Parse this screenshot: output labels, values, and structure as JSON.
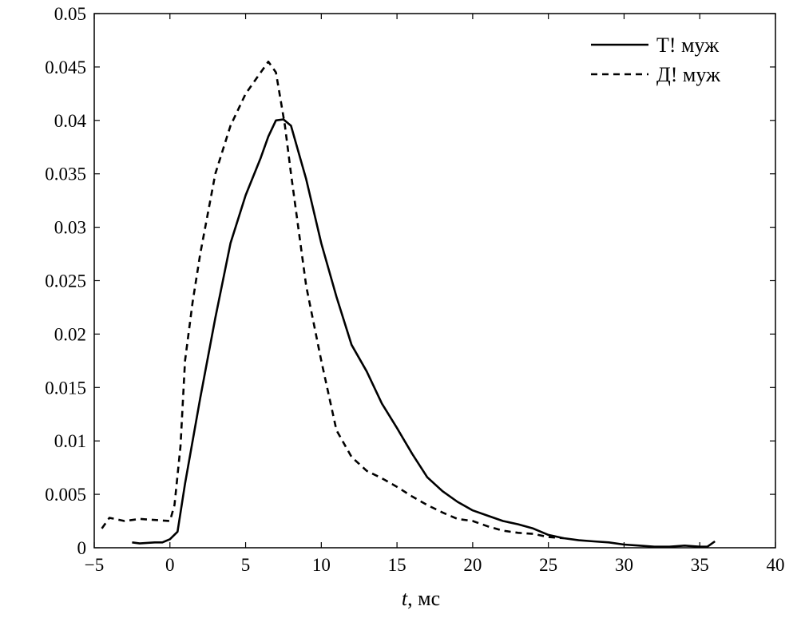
{
  "chart_data": {
    "type": "line",
    "title": "",
    "xlabel_var": "t",
    "xlabel_unit": ", мс",
    "ylabel": "",
    "xlim": [
      -5,
      40
    ],
    "ylim": [
      0,
      0.05
    ],
    "xticks": [
      -5,
      0,
      5,
      10,
      15,
      20,
      25,
      30,
      35,
      40
    ],
    "yticks": [
      0,
      0.005,
      0.01,
      0.015,
      0.02,
      0.025,
      0.03,
      0.035,
      0.04,
      0.045,
      0.05
    ],
    "xtick_labels": [
      "−5",
      "0",
      "5",
      "10",
      "15",
      "20",
      "25",
      "30",
      "35",
      "40"
    ],
    "ytick_labels": [
      "0",
      "0.005",
      "0.01",
      "0.015",
      "0.02",
      "0.025",
      "0.03",
      "0.035",
      "0.04",
      "0.045",
      "0.05"
    ],
    "grid": false,
    "legend_position": "top-right",
    "series": [
      {
        "name": "Т! муж",
        "style": "solid",
        "color": "#000000",
        "x": [
          -2.5,
          -2,
          -1,
          -0.5,
          0,
          0.5,
          1,
          2,
          3,
          4,
          5,
          6,
          6.5,
          7,
          7.5,
          8,
          9,
          10,
          11,
          12,
          13,
          14,
          15,
          16,
          17,
          18,
          19,
          20,
          21,
          22,
          23,
          24,
          25,
          26,
          27,
          28,
          29,
          30,
          31,
          32,
          33,
          34,
          35,
          35.5,
          36
        ],
        "y": [
          0.0005,
          0.0004,
          0.0005,
          0.0005,
          0.0008,
          0.0015,
          0.006,
          0.014,
          0.0215,
          0.0285,
          0.033,
          0.0365,
          0.0385,
          0.04,
          0.0401,
          0.0395,
          0.0345,
          0.0285,
          0.0235,
          0.019,
          0.0165,
          0.0135,
          0.0112,
          0.0088,
          0.0066,
          0.0053,
          0.0043,
          0.0035,
          0.003,
          0.0025,
          0.0022,
          0.0018,
          0.0012,
          0.0009,
          0.0007,
          0.0006,
          0.0005,
          0.0003,
          0.0002,
          0.0001,
          0.0001,
          0.0002,
          0.0001,
          0.0001,
          0.0006
        ]
      },
      {
        "name": "Д! муж",
        "style": "dashed",
        "color": "#000000",
        "x": [
          -4.5,
          -4,
          -3,
          -2,
          -1,
          0,
          0.3,
          0.7,
          1,
          1.5,
          2,
          3,
          4,
          5,
          6,
          6.5,
          7,
          7.3,
          7.6,
          8,
          9,
          10,
          11,
          12,
          13,
          14,
          15,
          16,
          17,
          18,
          19,
          20,
          21,
          22,
          23,
          24,
          25,
          26
        ],
        "y": [
          0.0018,
          0.0028,
          0.0025,
          0.0027,
          0.0026,
          0.0025,
          0.004,
          0.0095,
          0.0175,
          0.023,
          0.0275,
          0.035,
          0.0395,
          0.0425,
          0.0445,
          0.0455,
          0.0445,
          0.042,
          0.0395,
          0.035,
          0.0245,
          0.0175,
          0.011,
          0.0085,
          0.0072,
          0.0065,
          0.0057,
          0.0048,
          0.004,
          0.0033,
          0.0027,
          0.0025,
          0.002,
          0.0016,
          0.0014,
          0.0013,
          0.001,
          0.0009
        ]
      }
    ]
  }
}
